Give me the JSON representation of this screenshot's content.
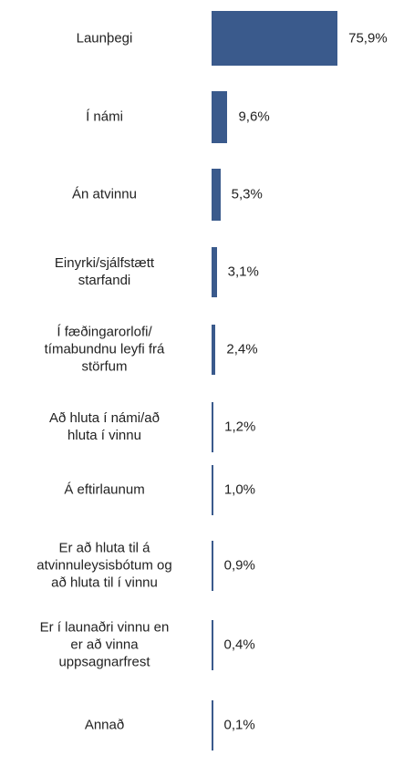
{
  "chart_data": {
    "type": "bar",
    "orientation": "horizontal",
    "categories": [
      "Launþegi",
      "Í námi",
      "Án atvinnu",
      "Einyrki/sjálfstætt\nstarfandi",
      "Í fæðingarorlofi/\ntímabundnu leyfi frá\nstörfum",
      "Að hluta í námi/að\nhluta í vinnu",
      "Á eftirlaunum",
      "Er að hluta til á\natvinnuleysisbótum og\nað hluta til í vinnu",
      "Er í launaðri vinnu en\ner að vinna\nuppsagnarfrest",
      "Annað"
    ],
    "values": [
      75.9,
      9.6,
      5.3,
      3.1,
      2.4,
      1.2,
      1.0,
      0.9,
      0.4,
      0.1
    ],
    "value_labels": [
      "75,9%",
      "9,6%",
      "5,3%",
      "3,1%",
      "2,4%",
      "1,2%",
      "1,0%",
      "0,9%",
      "0,4%",
      "0,1%"
    ],
    "color": "#3a5a8c"
  }
}
